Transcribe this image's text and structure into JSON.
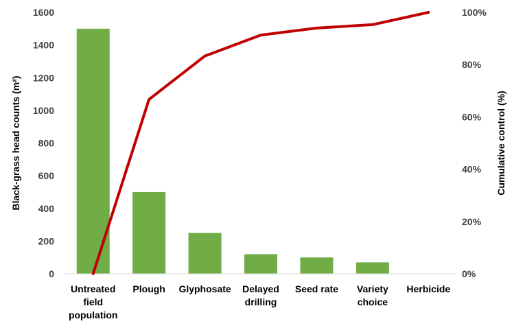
{
  "chart_data": {
    "type": "bar",
    "categories": [
      [
        "Untreated",
        "field",
        "population"
      ],
      [
        "Plough"
      ],
      [
        "Glyphosate"
      ],
      [
        "Delayed",
        "drilling"
      ],
      [
        "Seed rate"
      ],
      [
        "Variety",
        "choice"
      ],
      [
        "Herbicide"
      ]
    ],
    "series": [
      {
        "type": "bar",
        "axis": "left",
        "values": [
          1500,
          500,
          250,
          120,
          100,
          70,
          0
        ],
        "color": "#70AD47"
      },
      {
        "type": "line",
        "axis": "right",
        "values": [
          0,
          66.7,
          83.3,
          91.3,
          94.0,
          95.3,
          100
        ],
        "color": "#C00000"
      }
    ],
    "ylabel": "Black-grass head counts (m²)",
    "ylabel_right": "Cumulative control (%)",
    "ylim": [
      0,
      1600
    ],
    "ylim_right": [
      0,
      100
    ],
    "yticks": [
      "0",
      "200",
      "400",
      "600",
      "800",
      "1000",
      "1200",
      "1400",
      "1600"
    ],
    "yticks_right": [
      "0%",
      "20%",
      "40%",
      "60%",
      "80%",
      "100%"
    ],
    "grid": false,
    "legend": "none"
  }
}
